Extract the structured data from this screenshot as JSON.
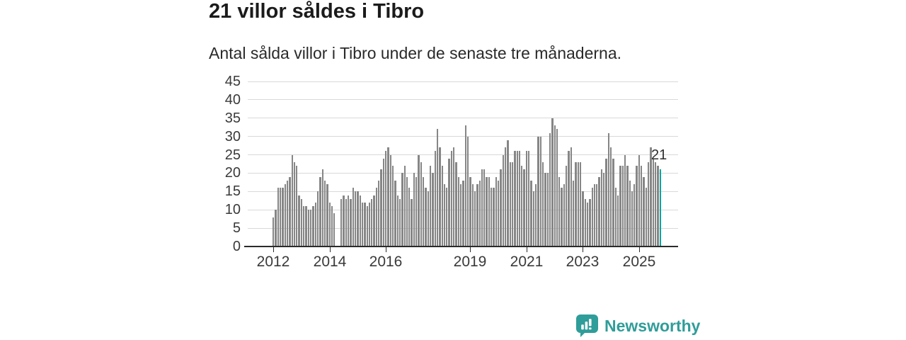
{
  "header": {
    "title": "21 villor såldes i Tibro",
    "subtitle": "Antal sålda villor i Tibro under de senaste tre månaderna."
  },
  "chart_data": {
    "type": "bar",
    "title": "21 villor såldes i Tibro",
    "subtitle": "Antal sålda villor i Tibro under de senaste tre månaderna.",
    "x_start": "2012-01",
    "x_end": "2025-10",
    "x_unit": "month",
    "ylim": [
      0,
      45
    ],
    "y_ticks": [
      0,
      5,
      10,
      15,
      20,
      25,
      30,
      35,
      40,
      45
    ],
    "grid": true,
    "values": [
      8,
      10,
      16,
      16,
      16,
      17,
      18,
      19,
      25,
      23,
      22,
      14,
      13,
      11,
      11,
      10,
      10,
      11,
      12,
      15,
      19,
      21,
      18,
      17,
      12,
      11,
      9,
      0,
      0,
      13,
      14,
      13,
      14,
      13,
      16,
      15,
      15,
      14,
      12,
      12,
      11,
      12,
      13,
      14,
      16,
      18,
      21,
      24,
      26,
      27,
      25,
      22,
      18,
      14,
      13,
      20,
      22,
      19,
      16,
      13,
      20,
      19,
      25,
      23,
      19,
      16,
      15,
      22,
      20,
      26,
      32,
      27,
      22,
      17,
      16,
      24,
      26,
      27,
      23,
      19,
      17,
      18,
      33,
      30,
      19,
      17,
      15,
      17,
      18,
      21,
      21,
      19,
      19,
      16,
      16,
      19,
      18,
      21,
      25,
      27,
      29,
      23,
      23,
      26,
      26,
      26,
      22,
      21,
      26,
      26,
      18,
      15,
      17,
      30,
      30,
      23,
      20,
      20,
      31,
      35,
      33,
      32,
      19,
      16,
      17,
      22,
      26,
      27,
      18,
      23,
      23,
      23,
      15,
      13,
      12,
      13,
      16,
      17,
      17,
      19,
      21,
      20,
      24,
      31,
      27,
      24,
      16,
      14,
      22,
      22,
      25,
      22,
      18,
      15,
      17,
      22,
      25,
      22,
      19,
      16,
      23,
      27,
      24,
      23,
      22,
      21
    ],
    "x_tick_labels": [
      "2012",
      "2014",
      "2016",
      "2019",
      "2021",
      "2023",
      "2025"
    ],
    "x_tick_month_index": [
      0,
      24,
      48,
      84,
      108,
      132,
      156
    ],
    "highlight_last_bar": true,
    "last_value_label": "21",
    "bar_color": "#868686",
    "highlight_color": "#00a59e",
    "grid_color": "#d9d9d9",
    "axis_color": "#2b2b2b",
    "label_color": "#3a3a3a"
  },
  "footer": {
    "brand": "Newsworthy",
    "brand_color": "#2f9d99",
    "logo_icon": "speech-bubble-bar-chart"
  }
}
